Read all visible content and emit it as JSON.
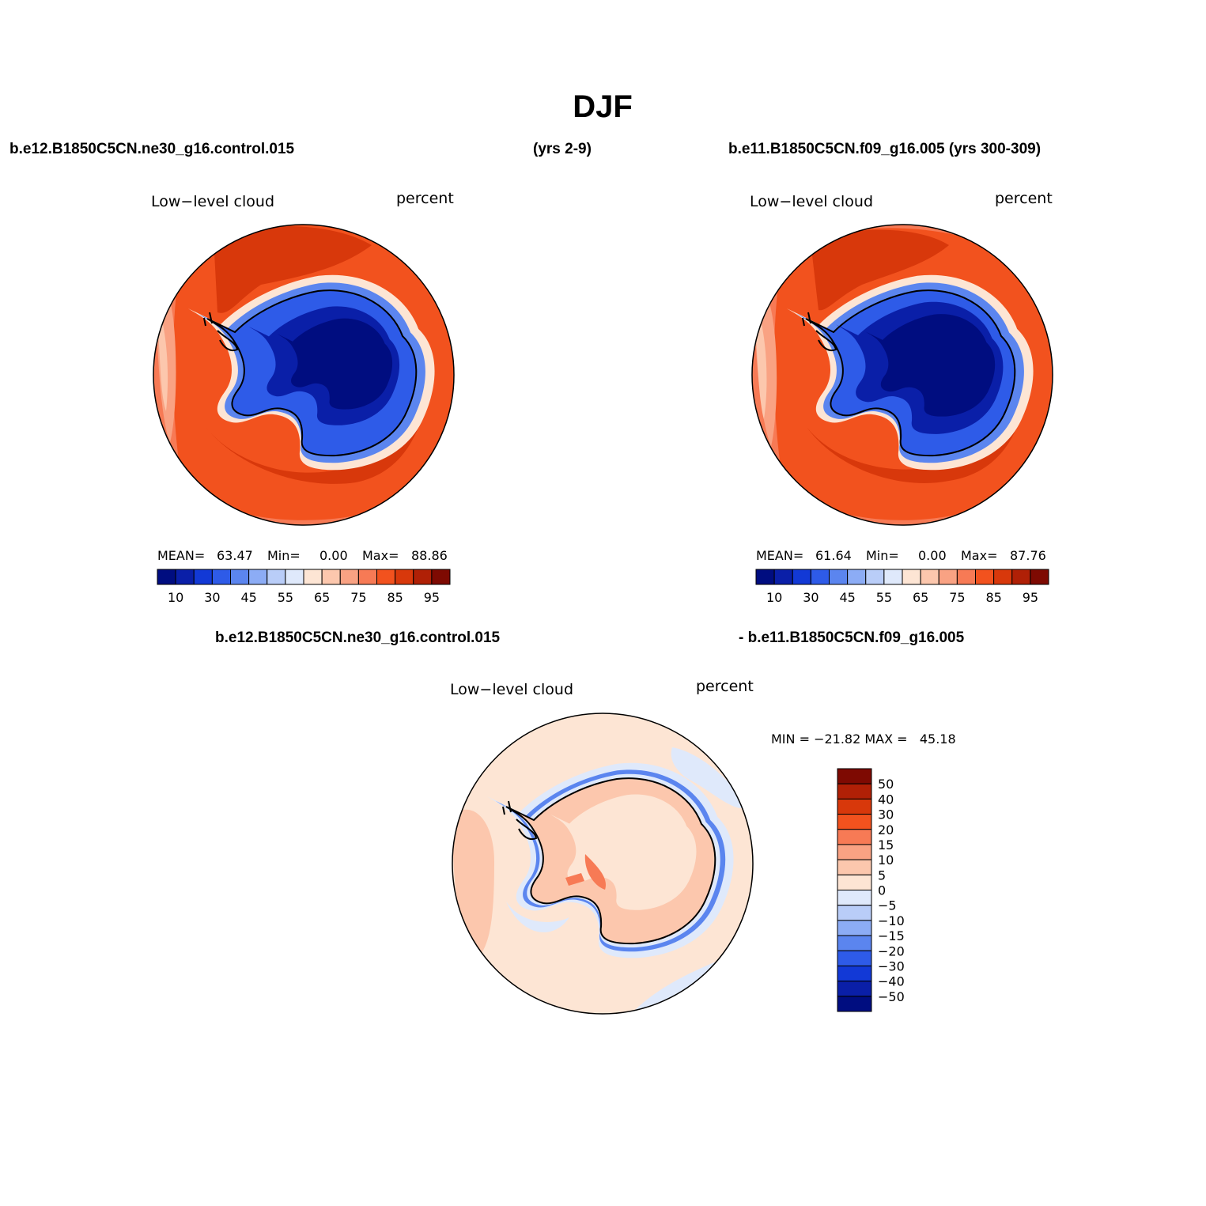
{
  "figure": {
    "title": "DJF",
    "header_left": "b.e12.B1850C5CN.ne30_g16.control.015",
    "header_left_years": "(yrs 2-9)",
    "header_right": "b.e11.B1850C5CN.f09_g16.005 (yrs 300-309)",
    "diff_left": "b.e12.B1850C5CN.ne30_g16.control.015",
    "diff_right": "- b.e11.B1850C5CN.f09_g16.005"
  },
  "panels": [
    {
      "variable": "Low−level cloud",
      "units": "percent",
      "stats": {
        "mean_label": "MEAN=",
        "mean": "63.47",
        "min_label": "Min=",
        "min": "0.00",
        "max_label": "Max=",
        "max": "88.86"
      }
    },
    {
      "variable": "Low−level cloud",
      "units": "percent",
      "stats": {
        "mean_label": "MEAN=",
        "mean": "61.64",
        "min_label": "Min=",
        "min": "0.00",
        "max_label": "Max=",
        "max": "87.76"
      }
    }
  ],
  "diff_panel": {
    "variable": "Low−level cloud",
    "units": "percent",
    "minmax": "MIN = −21.82 MAX =   45.18"
  },
  "colorbar_main": {
    "colors": [
      "#000d80",
      "#0a1fa8",
      "#1239d6",
      "#2e5be8",
      "#5b85ef",
      "#8cacf5",
      "#b9cdf8",
      "#dfe9fb",
      "#fde5d4",
      "#fcc7ad",
      "#f9a283",
      "#f77a55",
      "#f2521e",
      "#d8380b",
      "#b02006",
      "#7e0a02"
    ],
    "labels": [
      "10",
      "30",
      "45",
      "55",
      "65",
      "75",
      "85",
      "95"
    ]
  },
  "colorbar_diff": {
    "colors": [
      "#7e0a02",
      "#b02006",
      "#d8380b",
      "#f2521e",
      "#f77a55",
      "#f9a283",
      "#fcc7ad",
      "#fde5d4",
      "#dfe9fb",
      "#b9cdf8",
      "#8cacf5",
      "#5b85ef",
      "#2e5be8",
      "#1239d6",
      "#0a1fa8",
      "#000d80"
    ],
    "labels": [
      "50",
      "40",
      "30",
      "20",
      "15",
      "10",
      "5",
      "0",
      "−5",
      "−10",
      "−15",
      "−20",
      "−30",
      "−40",
      "−50"
    ]
  },
  "map_colors": {
    "ocean_very_high": "#d8380b",
    "ocean_high": "#f2521e",
    "ocean_mid": "#f77a55",
    "ocean_low": "#f9a283",
    "ocean_lighter": "#fcc7ad",
    "edge_white": "#fde5d4",
    "ice_light": "#5b85ef",
    "ice_mid": "#2e5be8",
    "ice_dark": "#0a1fa8",
    "ice_darkest": "#000d80",
    "diff_background": "#fde5d4",
    "diff_positive": "#fcc7ad",
    "diff_strong_positive": "#f77a55",
    "diff_negative": "#dfe9fb",
    "diff_strong_negative": "#5b85ef",
    "coast": "#000000"
  }
}
